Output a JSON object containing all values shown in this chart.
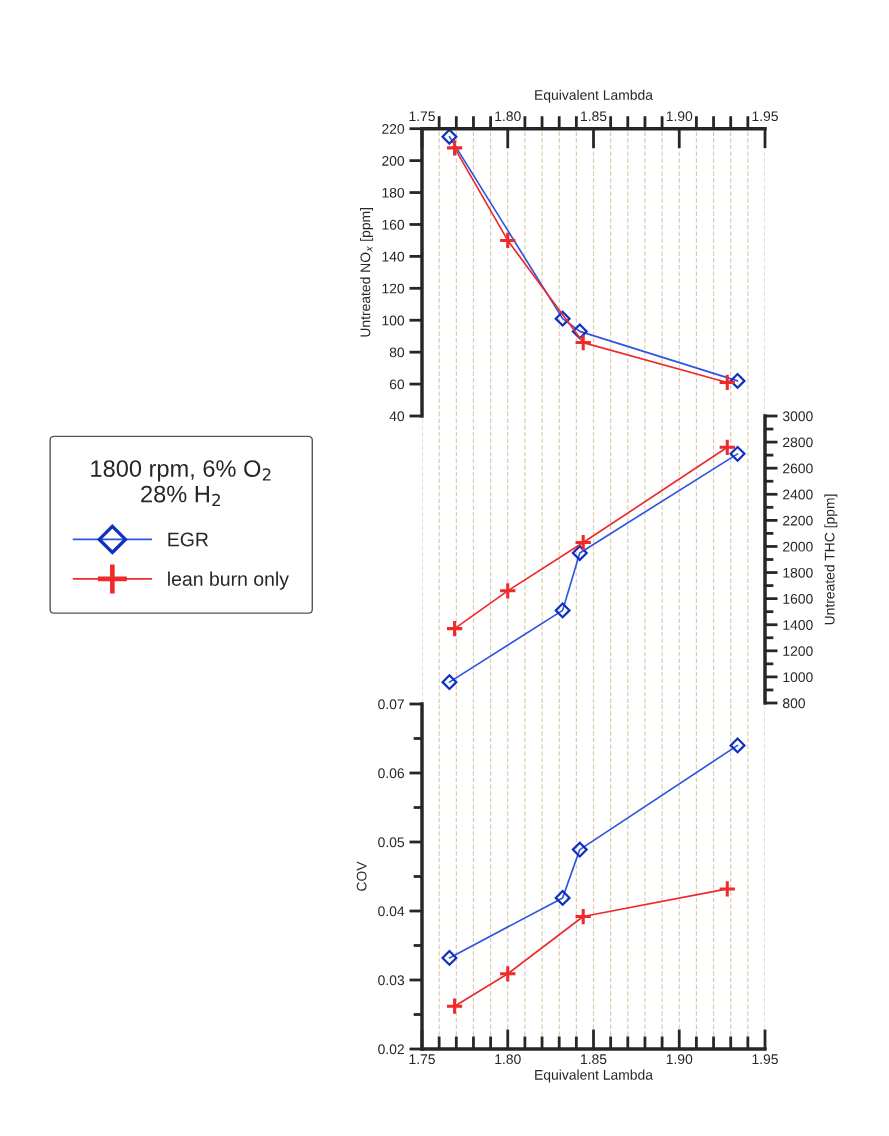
{
  "chart_data": [
    {
      "type": "line",
      "x2label": "Equivalent Lambda",
      "ylabel": "Untreated NO$_{x}$ [ppm]",
      "tick_labels": "y",
      "grid": "x",
      "legend": "left",
      "legend_title": "1800 rpm, 6% O$_{2}$\n28% H$_{2}$",
      "xlim": [
        1.75,
        1.95
      ],
      "x2lim": [
        1.75,
        1.95
      ],
      "x2ticks": [
        {
          "value": 1.75,
          "label": "1.75"
        },
        {
          "value": 1.76,
          "label": null
        },
        {
          "value": 1.77,
          "label": null
        },
        {
          "value": 1.78,
          "label": null
        },
        {
          "value": 1.79,
          "label": null
        },
        {
          "value": 1.8,
          "label": "1.80"
        },
        {
          "value": 1.81,
          "label": null
        },
        {
          "value": 1.82,
          "label": null
        },
        {
          "value": 1.83,
          "label": null
        },
        {
          "value": 1.84,
          "label": null
        },
        {
          "value": 1.85,
          "label": "1.85"
        },
        {
          "value": 1.86,
          "label": null
        },
        {
          "value": 1.87,
          "label": null
        },
        {
          "value": 1.88,
          "label": null
        },
        {
          "value": 1.89,
          "label": null
        },
        {
          "value": 1.9,
          "label": "1.90"
        },
        {
          "value": 1.91,
          "label": null
        },
        {
          "value": 1.92,
          "label": null
        },
        {
          "value": 1.93,
          "label": null
        },
        {
          "value": 1.94,
          "label": null
        },
        {
          "value": 1.95,
          "label": "1.95"
        }
      ],
      "ylim": [
        40,
        220
      ],
      "yticks": [
        40,
        60,
        80,
        100,
        120,
        140,
        160,
        180,
        200,
        220
      ],
      "series": [
        {
          "name": "EGR",
          "color": "#2f55e0",
          "marker": "diamond",
          "x": [
            1.766,
            1.832,
            1.842,
            1.934
          ],
          "values": [
            215,
            101,
            93,
            62
          ]
        },
        {
          "name": "lean burn only",
          "color": "#ee2a2a",
          "marker": "cross",
          "x": [
            1.769,
            1.8,
            1.844,
            1.928
          ],
          "values": [
            208,
            150,
            86,
            61
          ]
        }
      ]
    },
    {
      "type": "line",
      "y2label": "Untreated THC [ppm]",
      "grid": "x",
      "xlim": [
        1.75,
        1.95
      ],
      "y2lim": [
        800,
        3000
      ],
      "y2ticks": [
        800,
        {
          "value": 900,
          "label": null
        },
        1000,
        {
          "value": 1100,
          "label": null
        },
        1200,
        {
          "value": 1300,
          "label": null
        },
        1400,
        {
          "value": 1500,
          "label": null
        },
        1600,
        {
          "value": 1700,
          "label": null
        },
        1800,
        {
          "value": 1900,
          "label": null
        },
        2000,
        {
          "value": 2100,
          "label": null
        },
        2200,
        {
          "value": 2300,
          "label": null
        },
        2400,
        {
          "value": 2500,
          "label": null
        },
        2600,
        {
          "value": 2700,
          "label": null
        },
        2800,
        {
          "value": 2900,
          "label": null
        },
        3000
      ],
      "series": [
        {
          "color": "#2f55e0",
          "marker": "diamond",
          "axis": "y2",
          "x": [
            1.766,
            1.832,
            1.842,
            1.934
          ],
          "values": [
            960,
            1510,
            1950,
            2710
          ]
        },
        {
          "color": "#ee2a2a",
          "marker": "cross",
          "axis": "y2",
          "x": [
            1.769,
            1.8,
            1.844,
            1.928
          ],
          "values": [
            1370,
            1660,
            2030,
            2760
          ]
        }
      ]
    },
    {
      "type": "line",
      "xlabel": "Equivalent Lambda",
      "ylabel": "COV",
      "grid": "x",
      "legend": false,
      "xlim": [
        1.75,
        1.95
      ],
      "xticks": [
        {
          "value": 1.75,
          "label": "1.75"
        },
        {
          "value": 1.76,
          "label": null
        },
        {
          "value": 1.77,
          "label": null
        },
        {
          "value": 1.78,
          "label": null
        },
        {
          "value": 1.79,
          "label": null
        },
        {
          "value": 1.8,
          "label": "1.80"
        },
        {
          "value": 1.81,
          "label": null
        },
        {
          "value": 1.82,
          "label": null
        },
        {
          "value": 1.83,
          "label": null
        },
        {
          "value": 1.84,
          "label": null
        },
        {
          "value": 1.85,
          "label": "1.85"
        },
        {
          "value": 1.86,
          "label": null
        },
        {
          "value": 1.87,
          "label": null
        },
        {
          "value": 1.88,
          "label": null
        },
        {
          "value": 1.89,
          "label": null
        },
        {
          "value": 1.9,
          "label": "1.90"
        },
        {
          "value": 1.91,
          "label": null
        },
        {
          "value": 1.92,
          "label": null
        },
        {
          "value": 1.93,
          "label": null
        },
        {
          "value": 1.94,
          "label": null
        },
        {
          "value": 1.95,
          "label": "1.95"
        }
      ],
      "ylim": [
        0.02,
        0.07
      ],
      "yticks": [
        0.02,
        {
          "value": 0.025,
          "label": null
        },
        0.03,
        {
          "value": 0.035,
          "label": null
        },
        0.04,
        {
          "value": 0.045,
          "label": null
        },
        0.05,
        {
          "value": 0.055,
          "label": null
        },
        0.06,
        {
          "value": 0.065,
          "label": null
        },
        0.07
      ],
      "series": [
        {
          "color": "#2f55e0",
          "marker": "diamond",
          "x": [
            1.766,
            1.832,
            1.842,
            1.934
          ],
          "values": [
            0.0332,
            0.0419,
            0.0489,
            0.064
          ]
        },
        {
          "color": "#ee2a2a",
          "marker": "cross",
          "x": [
            1.769,
            1.8,
            1.844,
            1.928
          ],
          "values": [
            0.0262,
            0.0309,
            0.0392,
            0.0432
          ]
        }
      ]
    }
  ]
}
